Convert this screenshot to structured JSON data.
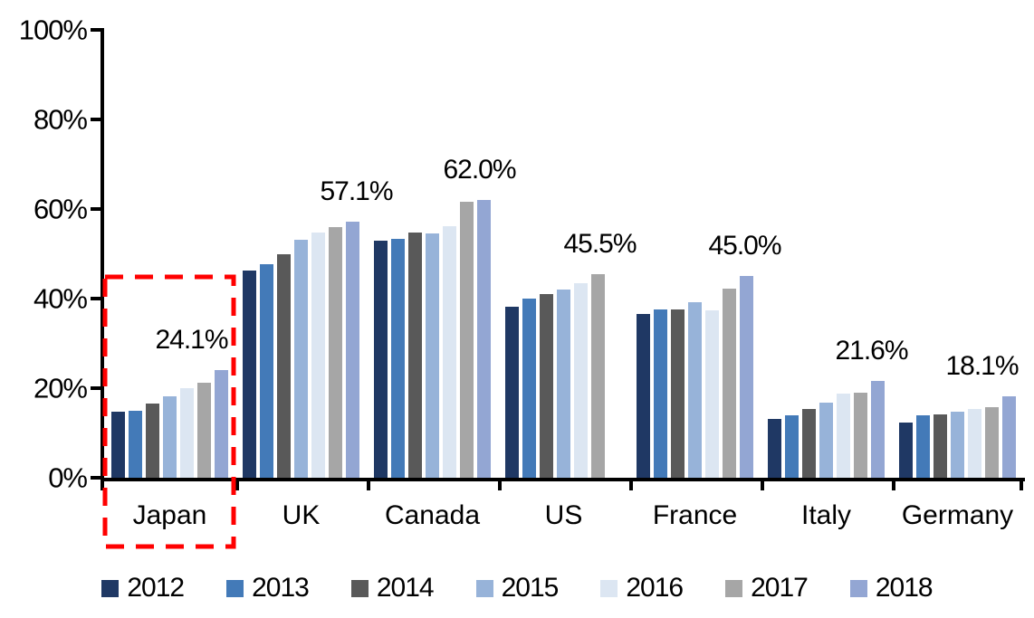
{
  "chart_data": {
    "type": "bar",
    "title": "",
    "xlabel": "",
    "ylabel": "",
    "categories": [
      "Japan",
      "UK",
      "Canada",
      "US",
      "France",
      "Italy",
      "Germany"
    ],
    "series": [
      {
        "name": "2012",
        "color": "#1F3864",
        "values": [
          14.8,
          46.2,
          53.0,
          38.1,
          36.5,
          13.2,
          12.4
        ]
      },
      {
        "name": "2013",
        "color": "#437AB8",
        "values": [
          15.0,
          47.7,
          53.3,
          39.9,
          37.6,
          14.0,
          13.9
        ]
      },
      {
        "name": "2014",
        "color": "#595959",
        "values": [
          16.6,
          49.8,
          54.8,
          41.0,
          37.6,
          15.3,
          14.1
        ]
      },
      {
        "name": "2015",
        "color": "#97B3D9",
        "values": [
          18.2,
          53.1,
          54.6,
          42.0,
          39.2,
          16.7,
          14.7
        ]
      },
      {
        "name": "2016",
        "color": "#DCE6F2",
        "values": [
          20.0,
          54.7,
          56.2,
          43.5,
          37.3,
          18.8,
          15.3
        ]
      },
      {
        "name": "2017",
        "color": "#A6A6A6",
        "values": [
          21.2,
          55.9,
          61.6,
          45.5,
          42.3,
          19.0,
          15.7
        ]
      },
      {
        "name": "2018",
        "color": "#93A6D3",
        "values": [
          24.1,
          57.1,
          62.0,
          null,
          45.0,
          21.6,
          18.1
        ]
      }
    ],
    "data_labels": [
      "24.1%",
      "57.1%",
      "62.0%",
      "45.5%",
      "45.0%",
      "21.6%",
      "18.1%"
    ],
    "yticks": [
      {
        "value": 100,
        "label": "100%"
      },
      {
        "value": 80,
        "label": "80%"
      },
      {
        "value": 60,
        "label": "60%"
      },
      {
        "value": 40,
        "label": "40%"
      },
      {
        "value": 20,
        "label": "20%"
      },
      {
        "value": 0,
        "label": "0%"
      }
    ],
    "ylim": [
      0,
      100
    ],
    "grid": false,
    "legend_position": "bottom",
    "axis_color": "#000000",
    "annotations": {
      "highlight_box": {
        "category": "Japan",
        "color": "#FF0000",
        "style": "dashed"
      }
    }
  }
}
